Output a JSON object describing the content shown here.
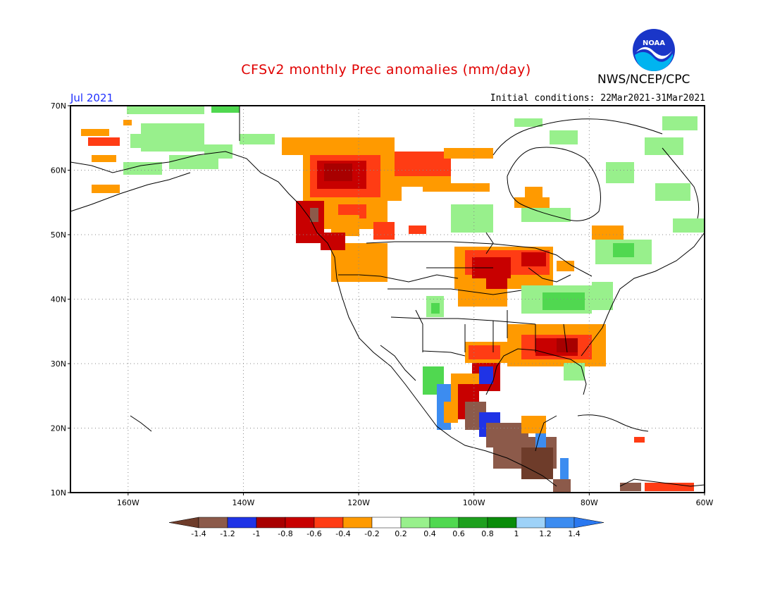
{
  "title": "CFSv2 monthly Prec anomalies (mm/day)",
  "organization": "NWS/NCEP/CPC",
  "logo_text": "NOAA",
  "valid_month": "Jul 2021",
  "initial_conditions": "Initial conditions: 22Mar2021-31Mar2021",
  "map": {
    "lon_range": [
      -170,
      -60
    ],
    "lat_range": [
      10,
      70
    ],
    "lat_ticks": [
      {
        "value": 70,
        "label": "70N"
      },
      {
        "value": 60,
        "label": "60N"
      },
      {
        "value": 50,
        "label": "50N"
      },
      {
        "value": 40,
        "label": "40N"
      },
      {
        "value": 30,
        "label": "30N"
      },
      {
        "value": 20,
        "label": "20N"
      },
      {
        "value": 10,
        "label": "10N"
      }
    ],
    "lon_ticks": [
      {
        "value": -160,
        "label": "160W"
      },
      {
        "value": -140,
        "label": "140W"
      },
      {
        "value": -120,
        "label": "120W"
      },
      {
        "value": -100,
        "label": "100W"
      },
      {
        "value": -80,
        "label": "80W"
      },
      {
        "value": -60,
        "label": "60W"
      }
    ],
    "grid": true
  },
  "colorbar": {
    "colors": [
      "#8c5a4a",
      "#1f33e6",
      "#a80000",
      "#c80000",
      "#ff3c14",
      "#ff9a00",
      "#ffffff",
      "#98f08c",
      "#50d850",
      "#1ea01e",
      "#0a8c0a",
      "#9ed2f8",
      "#3c8cf0"
    ],
    "labels": [
      "-1.4",
      "-1.2",
      "-1",
      "-0.8",
      "-0.6",
      "-0.4",
      "-0.2",
      "0.2",
      "0.4",
      "0.6",
      "0.8",
      "1",
      "1.2",
      "1.4"
    ],
    "left_arrow_color": "#6e3c2a",
    "right_arrow_color": "#2a78f0"
  }
}
